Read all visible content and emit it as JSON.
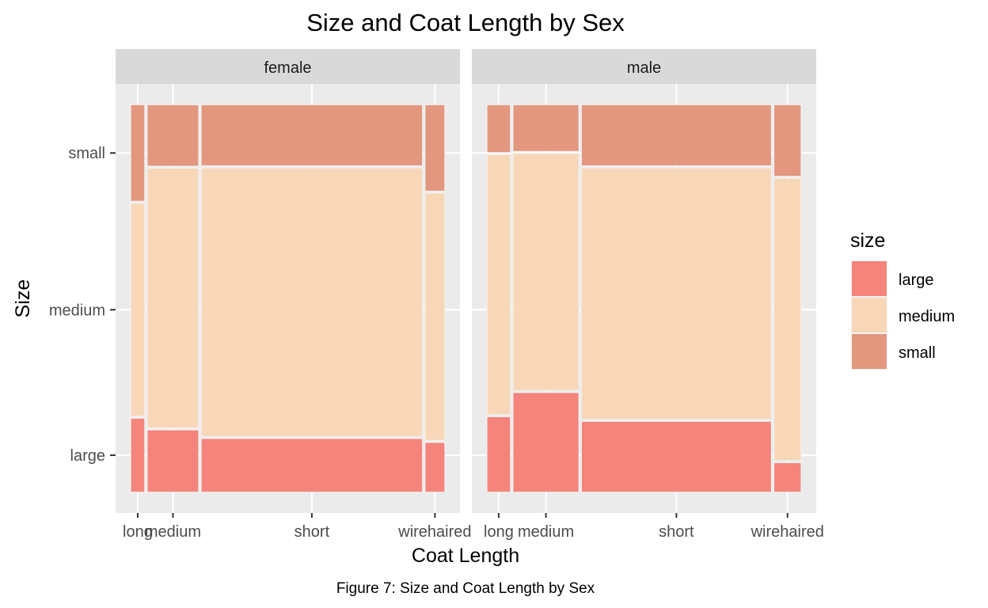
{
  "chart_data": {
    "type": "mosaic",
    "title": "Size and Coat Length by Sex",
    "xlabel": "Coat Length",
    "ylabel": "Size",
    "caption": "Figure 7: Size and Coat Length by Sex",
    "y_tick_labels": [
      "large",
      "medium",
      "small"
    ],
    "legend": {
      "title": "size",
      "position": "right",
      "entries": [
        {
          "label": "large",
          "color": "#F4847C"
        },
        {
          "label": "medium",
          "color": "#F8D7B9"
        },
        {
          "label": "small",
          "color": "#E3977F"
        }
      ]
    },
    "colors": {
      "large": "#F4847C",
      "medium": "#F8D7B9",
      "small": "#E3977F"
    },
    "grid": true,
    "facets": [
      {
        "name": "female",
        "columns": [
          {
            "coat": "long",
            "width_share": 0.046,
            "size_shares": {
              "large": 0.195,
              "medium": 0.552,
              "small": 0.253
            }
          },
          {
            "coat": "medium",
            "width_share": 0.168,
            "size_shares": {
              "large": 0.165,
              "medium": 0.672,
              "small": 0.163
            }
          },
          {
            "coat": "short",
            "width_share": 0.721,
            "size_shares": {
              "large": 0.143,
              "medium": 0.695,
              "small": 0.162
            }
          },
          {
            "coat": "wirehaired",
            "width_share": 0.065,
            "size_shares": {
              "large": 0.133,
              "medium": 0.64,
              "small": 0.227
            }
          }
        ]
      },
      {
        "name": "male",
        "columns": [
          {
            "coat": "long",
            "width_share": 0.077,
            "size_shares": {
              "large": 0.199,
              "medium": 0.673,
              "small": 0.128
            }
          },
          {
            "coat": "medium",
            "width_share": 0.215,
            "size_shares": {
              "large": 0.261,
              "medium": 0.614,
              "small": 0.125
            }
          },
          {
            "coat": "short",
            "width_share": 0.619,
            "size_shares": {
              "large": 0.187,
              "medium": 0.651,
              "small": 0.162
            }
          },
          {
            "coat": "wirehaired",
            "width_share": 0.089,
            "size_shares": {
              "large": 0.081,
              "medium": 0.73,
              "small": 0.189
            }
          }
        ]
      }
    ]
  }
}
